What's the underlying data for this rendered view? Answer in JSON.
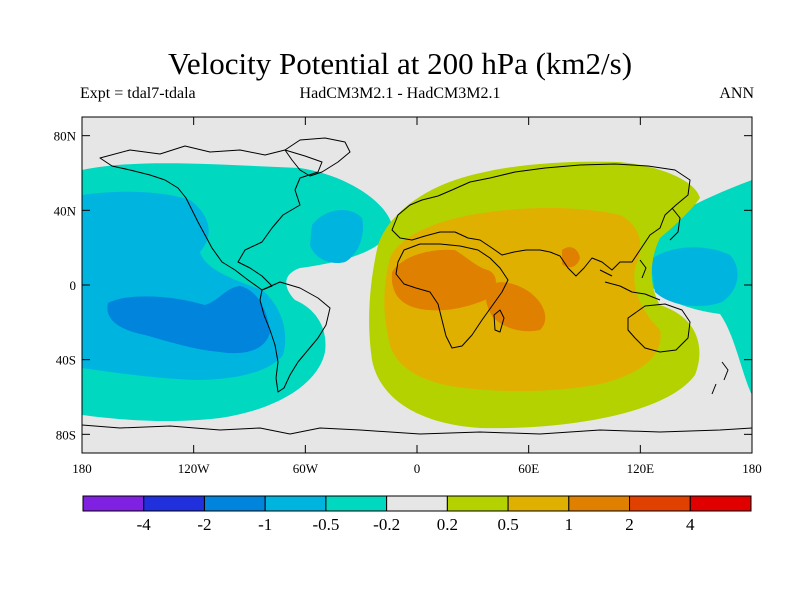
{
  "title": "Velocity Potential at 200 hPa (km2/s)",
  "expt": "Expt = tdal7-tdala",
  "models": "HadCM3M2.1 - HadCM3M2.1",
  "period": "ANN",
  "map": {
    "projection": "cylindrical-equidistant",
    "lon_range": [
      -180,
      180
    ],
    "lat_range": [
      -90,
      90
    ],
    "lat_ticks": [
      {
        "value": 80,
        "label": "80N"
      },
      {
        "value": 40,
        "label": "40N"
      },
      {
        "value": 0,
        "label": "0"
      },
      {
        "value": -40,
        "label": "40S"
      },
      {
        "value": -80,
        "label": "80S"
      }
    ],
    "lon_ticks": [
      {
        "value": -180,
        "label": "180"
      },
      {
        "value": -120,
        "label": "120W"
      },
      {
        "value": -60,
        "label": "60W"
      },
      {
        "value": 0,
        "label": "0"
      },
      {
        "value": 60,
        "label": "60E"
      },
      {
        "value": 120,
        "label": "120E"
      },
      {
        "value": 180,
        "label": "180"
      }
    ],
    "background_color": "#e6e6e6",
    "regions": [
      {
        "name": "pacific-negative-lobe",
        "level": "-0.5 to -0.2",
        "color": "#00d8c0"
      },
      {
        "name": "pacific-blue-core",
        "level": "-1 to -0.5",
        "color": "#00b4e0"
      },
      {
        "name": "pacific-deep-blue-core",
        "level": "-2 to -1",
        "color": "#0084dc"
      },
      {
        "name": "atlantic-blue-core",
        "level": "-1 to -0.5",
        "color": "#00b4e0"
      },
      {
        "name": "west-pacific-negative-lobe",
        "level": "-0.5 to -0.2",
        "color": "#00d8c0"
      },
      {
        "name": "west-pacific-blue-core",
        "level": "-1 to -0.5",
        "color": "#00b4e0"
      },
      {
        "name": "eastern-positive-lobe",
        "level": "0.2 to 0.5",
        "color": "#b4d200"
      },
      {
        "name": "africa-indian-ocean-lobe",
        "level": "0.5 to 1",
        "color": "#e0b000"
      },
      {
        "name": "africa-core",
        "level": "1 to 2",
        "color": "#e08000"
      },
      {
        "name": "east-africa-core",
        "level": "1 to 2",
        "color": "#e08000"
      },
      {
        "name": "india-core",
        "level": "1 to 2",
        "color": "#e08000"
      }
    ]
  },
  "colorbar": {
    "colors": [
      "#8020e0",
      "#2030dc",
      "#0084dc",
      "#00b4e0",
      "#00d8c0",
      "#e6e6e6",
      "#b4d200",
      "#e0b000",
      "#e08000",
      "#e04000",
      "#e00000"
    ],
    "labels": [
      "-4",
      "-2",
      "-1",
      "-0.5",
      "-0.2",
      "0.2",
      "0.5",
      "1",
      "2",
      "4"
    ]
  }
}
